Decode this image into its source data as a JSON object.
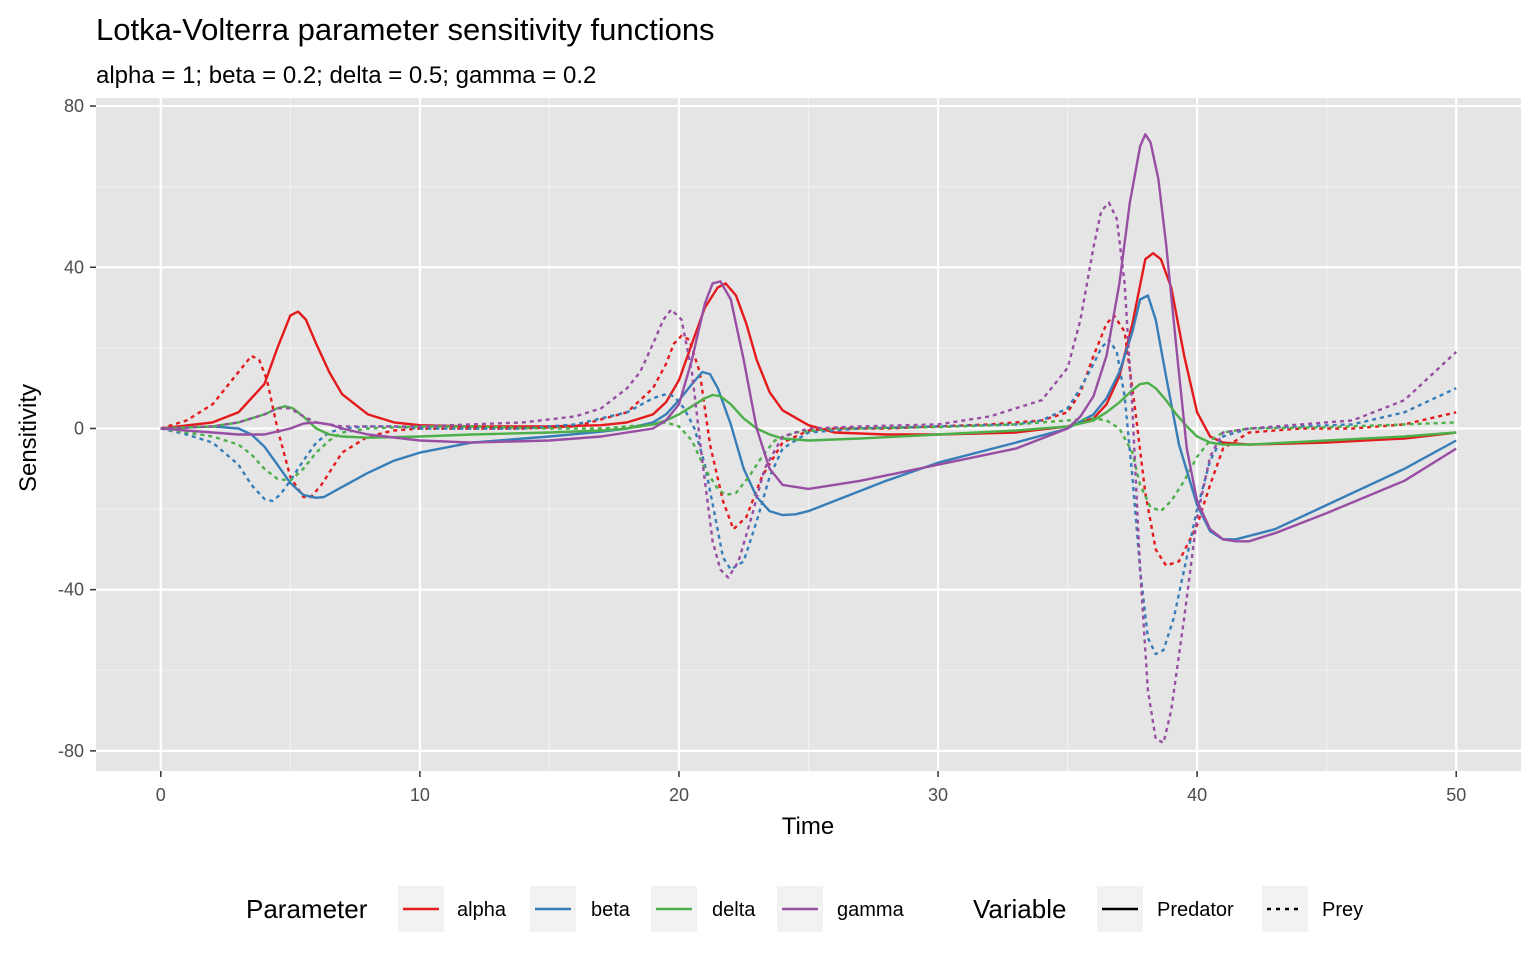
{
  "chart_data": {
    "type": "line",
    "title": "Lotka-Volterra parameter sensitivity functions",
    "subtitle": "alpha = 1; beta = 0.2; delta = 0.5; gamma = 0.2",
    "xlabel": "Time",
    "ylabel": "Sensitivity",
    "xlim": [
      -2.5,
      52.5
    ],
    "ylim": [
      -85,
      82
    ],
    "xticks": [
      0,
      10,
      20,
      30,
      40,
      50
    ],
    "yticks": [
      -80,
      -40,
      0,
      40,
      80
    ],
    "xtick_labels": [
      "0",
      "10",
      "20",
      "30",
      "40",
      "50"
    ],
    "ytick_labels": [
      "-80",
      "-40",
      "0",
      "40",
      "80"
    ],
    "grid": true,
    "legend_position": "bottom",
    "legend": {
      "color_title": "Parameter",
      "linetype_title": "Variable",
      "color_entries": [
        {
          "label": "alpha",
          "color": "#e41a1c"
        },
        {
          "label": "beta",
          "color": "#377eb8"
        },
        {
          "label": "delta",
          "color": "#4daf4a"
        },
        {
          "label": "gamma",
          "color": "#984ea3"
        }
      ],
      "linetype_entries": [
        {
          "label": "Predator",
          "dash": "solid"
        },
        {
          "label": "Prey",
          "dash": "dashed"
        }
      ]
    },
    "series": [
      {
        "parameter": "alpha",
        "variable": "Predator",
        "color": "#e41a1c",
        "dash": "solid",
        "x": [
          0,
          2,
          3,
          4,
          4.5,
          5,
          5.3,
          5.6,
          6,
          6.5,
          7,
          8,
          9,
          10,
          12,
          15,
          17,
          18,
          19,
          19.5,
          20,
          20.5,
          21,
          21.5,
          21.8,
          22.2,
          22.6,
          23,
          23.5,
          24,
          25,
          26,
          28,
          30,
          33,
          35,
          36,
          36.5,
          37,
          37.5,
          38,
          38.3,
          38.6,
          39,
          39.5,
          40,
          40.5,
          41,
          42,
          45,
          48,
          50
        ],
        "y": [
          0,
          1.5,
          4,
          11,
          20,
          28,
          29,
          27,
          21,
          14,
          8.5,
          3.5,
          1.5,
          0.8,
          0.5,
          0.5,
          0.8,
          1.5,
          3.5,
          6.5,
          12,
          21,
          30,
          35,
          36,
          33,
          26,
          17,
          9,
          4.5,
          0.8,
          -1,
          -1.5,
          -1.5,
          -1,
          0.5,
          2.5,
          6,
          13,
          26,
          42,
          43.5,
          42,
          35,
          18,
          4,
          -2,
          -3.5,
          -4,
          -3.5,
          -2.5,
          -1
        ]
      },
      {
        "parameter": "alpha",
        "variable": "Prey",
        "color": "#e41a1c",
        "dash": "dashed",
        "x": [
          0,
          1,
          2,
          3,
          3.5,
          3.8,
          4.1,
          4.5,
          5,
          5.5,
          5.8,
          6.2,
          7,
          8,
          9,
          10,
          12,
          14,
          16,
          18,
          19,
          19.5,
          19.8,
          20.1,
          20.4,
          20.8,
          21.2,
          21.7,
          22.1,
          22.6,
          23.2,
          24,
          25,
          26,
          28,
          30,
          32,
          34,
          35,
          35.5,
          36,
          36.5,
          36.8,
          37.2,
          37.6,
          38,
          38.4,
          38.8,
          39.3,
          40,
          40.5,
          41,
          42,
          44,
          46,
          48,
          50
        ],
        "y": [
          0,
          2,
          6,
          14,
          18,
          17,
          12,
          0,
          -12,
          -17,
          -17,
          -14,
          -6,
          -2,
          -0.5,
          0,
          0,
          0,
          0.5,
          4,
          10,
          16,
          21,
          23,
          22,
          14,
          -4,
          -18,
          -25,
          -22,
          -12,
          -3.5,
          -0.5,
          0,
          0,
          0.5,
          1,
          2,
          4,
          9,
          18,
          26,
          28,
          24,
          5,
          -16,
          -30,
          -34,
          -33,
          -24,
          -14,
          -5,
          -1,
          0,
          0,
          1,
          4
        ]
      },
      {
        "parameter": "beta",
        "variable": "Predator",
        "color": "#377eb8",
        "dash": "solid",
        "x": [
          0,
          2,
          3,
          3.5,
          4,
          4.5,
          5,
          5.5,
          6,
          6.3,
          7,
          8,
          9,
          10,
          12,
          15,
          17,
          18,
          19,
          19.5,
          20,
          20.5,
          20.9,
          21.2,
          21.5,
          22,
          22.5,
          23,
          23.5,
          24,
          24.5,
          25,
          26,
          28,
          30,
          33,
          35,
          36,
          36.5,
          37,
          37.5,
          37.8,
          38.1,
          38.4,
          38.8,
          39.3,
          40,
          40.5,
          41,
          41.5,
          43,
          45,
          48,
          50
        ],
        "y": [
          0,
          0.5,
          0,
          -1.5,
          -4.5,
          -9,
          -13.5,
          -16.5,
          -17.2,
          -17,
          -14.5,
          -11,
          -8,
          -6,
          -3.5,
          -2,
          -0.8,
          0,
          1.5,
          3.5,
          7,
          11,
          14,
          13.5,
          10,
          1,
          -10,
          -17,
          -20.5,
          -21.5,
          -21.3,
          -20.5,
          -18,
          -13,
          -8.5,
          -3.5,
          0,
          3.5,
          7.5,
          14,
          24,
          32,
          33,
          27,
          13,
          -4,
          -19,
          -25.5,
          -27.5,
          -27.5,
          -25,
          -19,
          -10,
          -3
        ]
      },
      {
        "parameter": "beta",
        "variable": "Prey",
        "color": "#377eb8",
        "dash": "dashed",
        "x": [
          0,
          1,
          2,
          3,
          3.5,
          4,
          4.3,
          4.6,
          5,
          5.5,
          6,
          6.5,
          7,
          8,
          9,
          10,
          12,
          14,
          16,
          18,
          19,
          19.5,
          19.8,
          20.2,
          20.6,
          21,
          21.4,
          21.7,
          22,
          22.5,
          23,
          23.5,
          24,
          25,
          27,
          30,
          33,
          34,
          35,
          35.5,
          36,
          36.3,
          36.6,
          36.9,
          37.2,
          37.5,
          37.8,
          38.1,
          38.4,
          38.7,
          39.1,
          39.5,
          40,
          40.5,
          41,
          42,
          44,
          46,
          48,
          50
        ],
        "y": [
          0,
          -1.5,
          -3.5,
          -9,
          -14,
          -17.5,
          -18,
          -16.5,
          -13,
          -8,
          -3.5,
          -1,
          0,
          0.5,
          0.5,
          0,
          0,
          0,
          1,
          4,
          7.5,
          8.5,
          8,
          5,
          0,
          -9,
          -22,
          -32,
          -35,
          -33,
          -23,
          -12,
          -5,
          -1,
          0,
          0.5,
          1,
          2,
          5,
          10,
          16,
          20,
          22,
          19,
          8,
          -12,
          -35,
          -52,
          -56,
          -55,
          -47,
          -35,
          -20,
          -8,
          -2,
          0,
          0.5,
          1,
          4,
          10
        ]
      },
      {
        "parameter": "delta",
        "variable": "Predator",
        "color": "#4daf4a",
        "dash": "solid",
        "x": [
          0,
          2,
          3,
          4,
          4.5,
          4.8,
          5.1,
          5.5,
          6,
          6.5,
          7,
          8,
          10,
          12,
          15,
          17,
          18,
          19,
          19.5,
          20,
          20.5,
          21,
          21.3,
          21.6,
          22,
          22.5,
          23,
          23.5,
          24,
          25,
          27,
          30,
          33,
          35,
          36,
          36.5,
          37,
          37.5,
          37.8,
          38.1,
          38.4,
          38.8,
          39.2,
          39.6,
          40,
          40.5,
          41,
          42,
          45,
          48,
          50
        ],
        "y": [
          0,
          0.5,
          1.5,
          3.5,
          5,
          5.5,
          5,
          3,
          0,
          -1.5,
          -2,
          -2.3,
          -2,
          -1.5,
          -1,
          -0.5,
          0,
          1,
          2,
          3.5,
          5.5,
          7.5,
          8.3,
          8,
          6,
          2.5,
          0,
          -1.5,
          -2.5,
          -3,
          -2.5,
          -1.5,
          -0.5,
          0.5,
          2,
          4,
          6.5,
          9.5,
          11,
          11.3,
          10,
          7,
          3.5,
          0.5,
          -2,
          -3.5,
          -4,
          -4,
          -3,
          -2,
          -1
        ]
      },
      {
        "parameter": "delta",
        "variable": "Prey",
        "color": "#4daf4a",
        "dash": "dashed",
        "x": [
          0,
          1,
          2,
          3,
          3.5,
          4,
          4.5,
          5,
          5.5,
          6,
          6.5,
          7,
          8,
          10,
          12,
          15,
          17,
          19,
          19.5,
          20,
          20.5,
          21,
          21.5,
          21.8,
          22.2,
          22.7,
          23.2,
          23.7,
          24.5,
          26,
          30,
          33,
          35,
          36,
          36.5,
          37,
          37.5,
          37.8,
          38.2,
          38.6,
          39,
          39.5,
          40,
          40.5,
          41,
          42,
          45,
          48,
          50
        ],
        "y": [
          0,
          -1,
          -2,
          -4,
          -6.5,
          -10,
          -12.5,
          -13,
          -10,
          -6,
          -3,
          -1,
          0,
          0.5,
          0.5,
          0,
          0,
          1,
          1.5,
          0.5,
          -3,
          -10,
          -15,
          -16.5,
          -16,
          -12,
          -7,
          -3,
          -1,
          0,
          0.3,
          1,
          2,
          2.5,
          2,
          0,
          -6,
          -14,
          -19.5,
          -20.5,
          -18,
          -13,
          -7,
          -3,
          -1,
          0,
          0.3,
          1,
          1.5
        ]
      },
      {
        "parameter": "gamma",
        "variable": "Predator",
        "color": "#984ea3",
        "dash": "solid",
        "x": [
          0,
          2,
          3,
          4,
          5,
          5.5,
          6,
          6.5,
          7,
          8,
          10,
          12,
          15,
          17,
          18,
          19,
          19.5,
          20,
          20.5,
          21,
          21.3,
          21.6,
          22,
          22.5,
          23,
          23.5,
          24,
          25,
          27,
          30,
          33,
          35,
          35.5,
          36,
          36.5,
          37,
          37.4,
          37.8,
          38,
          38.2,
          38.5,
          38.8,
          39.2,
          39.6,
          40,
          40.5,
          41,
          41.5,
          42,
          43,
          45,
          48,
          50
        ],
        "y": [
          0,
          -1,
          -1.5,
          -1.5,
          0,
          1.2,
          1.5,
          1,
          0,
          -1.5,
          -3,
          -3.5,
          -3,
          -2,
          -1,
          0,
          2,
          6,
          17,
          31,
          36,
          36.5,
          32,
          17,
          0,
          -10,
          -14,
          -15,
          -13,
          -9,
          -5,
          0,
          3,
          8,
          18,
          36,
          56,
          70,
          73,
          71,
          62,
          46,
          20,
          -5,
          -18,
          -25,
          -27.5,
          -28,
          -28,
          -26,
          -21,
          -13,
          -5
        ]
      },
      {
        "parameter": "gamma",
        "variable": "Prey",
        "color": "#984ea3",
        "dash": "dashed",
        "x": [
          0,
          2,
          3,
          4,
          4.5,
          5,
          5.5,
          6,
          7,
          8,
          10,
          12,
          14,
          16,
          17,
          18,
          18.5,
          19,
          19.4,
          19.7,
          20.1,
          20.5,
          20.9,
          21.3,
          21.6,
          21.9,
          22.3,
          22.8,
          23.3,
          24,
          25,
          27,
          30,
          32,
          34,
          35,
          35.5,
          36,
          36.3,
          36.6,
          36.9,
          37.2,
          37.5,
          37.8,
          38.1,
          38.4,
          38.7,
          39,
          39.5,
          40,
          40.5,
          41,
          42,
          44,
          46,
          48,
          50
        ],
        "y": [
          0,
          0.5,
          1.5,
          3.5,
          5,
          5,
          3,
          1.5,
          0.5,
          0.5,
          0.5,
          1,
          1.5,
          3,
          5,
          10,
          14,
          21,
          27,
          29.5,
          27,
          14,
          -8,
          -28,
          -35,
          -37,
          -33,
          -22,
          -10,
          -2,
          0,
          0.5,
          1,
          3,
          7,
          15,
          27,
          45,
          54,
          56,
          52,
          36,
          5,
          -35,
          -65,
          -77,
          -78,
          -70,
          -47,
          -22,
          -7,
          -1,
          0,
          1,
          2,
          7,
          19
        ]
      }
    ]
  }
}
